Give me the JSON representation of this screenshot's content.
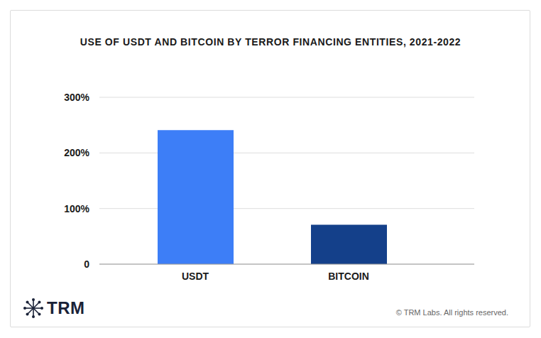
{
  "chart_data": {
    "type": "bar",
    "title": "USE OF USDT AND BITCOIN BY TERROR FINANCING ENTITIES, 2021-2022",
    "categories": [
      "USDT",
      "BITCOIN"
    ],
    "values": [
      241,
      71
    ],
    "colors": [
      "#3d7ef7",
      "#14408a"
    ],
    "ylim": [
      0,
      300
    ],
    "yticks": [
      0,
      {
        "value": 100,
        "label": "100%"
      },
      {
        "value": 200,
        "label": "200%"
      },
      {
        "value": 300,
        "label": "300%"
      }
    ],
    "grid": true,
    "logo": "TRM",
    "footer": "© TRM Labs. All rights reserved."
  }
}
